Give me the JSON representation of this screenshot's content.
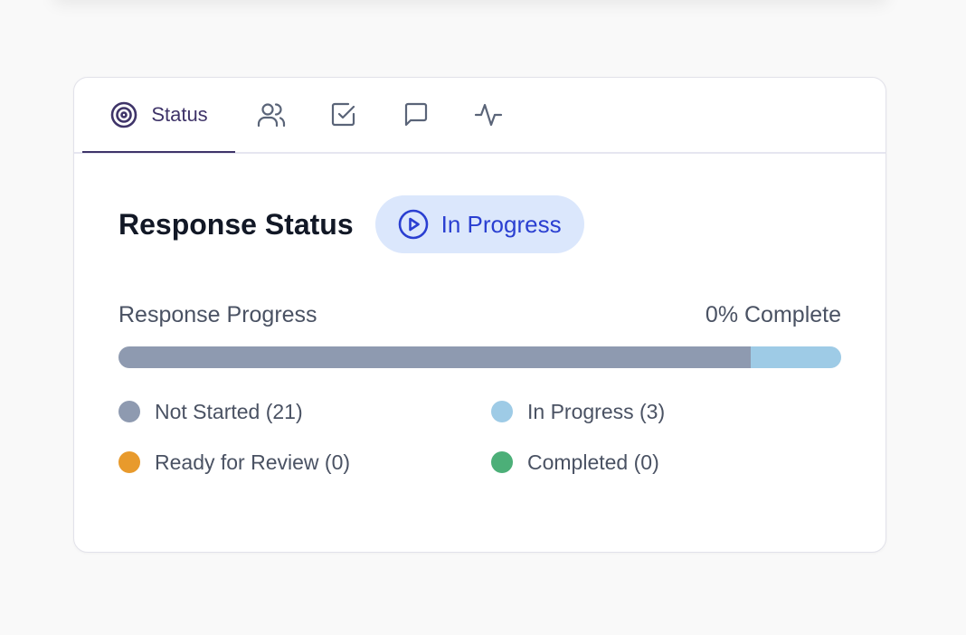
{
  "tabs": [
    {
      "label": "Status",
      "icon": "target-icon",
      "active": true
    },
    {
      "icon": "users-icon"
    },
    {
      "icon": "checkbox-icon"
    },
    {
      "icon": "message-icon"
    },
    {
      "icon": "activity-icon"
    }
  ],
  "header": {
    "title": "Response Status",
    "badge": {
      "label": "In Progress",
      "icon": "play-circle-icon"
    }
  },
  "progress": {
    "label": "Response Progress",
    "complete_text": "0% Complete",
    "percent_complete": 0
  },
  "legend": [
    {
      "label": "Not Started (21)",
      "count": 21,
      "color": "#8e9ab0"
    },
    {
      "label": "In Progress (3)",
      "count": 3,
      "color": "#9ecbe6"
    },
    {
      "label": "Ready for Review (0)",
      "count": 0,
      "color": "#e89a2c"
    },
    {
      "label": "Completed (0)",
      "count": 0,
      "color": "#4caf78"
    }
  ]
}
